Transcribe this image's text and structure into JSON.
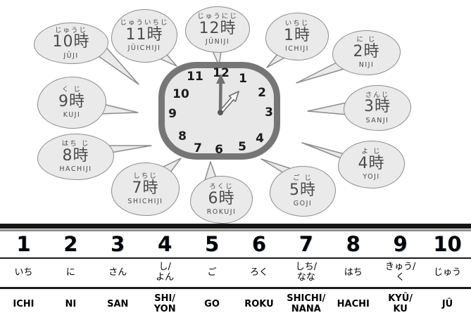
{
  "scene": {
    "clock": {
      "numbers": [
        "12",
        "1",
        "2",
        "3",
        "4",
        "5",
        "6",
        "7",
        "8",
        "9",
        "10",
        "11"
      ],
      "minute_hand_at": "12",
      "hour_hand_at": "1"
    },
    "bubbles": [
      {
        "hour": "1",
        "furigana": "いちじ",
        "time": "1時",
        "romaji": "ICHIJI"
      },
      {
        "hour": "2",
        "furigana": "に じ",
        "time": "2時",
        "romaji": "NIJI"
      },
      {
        "hour": "3",
        "furigana": "さんじ",
        "time": "3時",
        "romaji": "SANJI"
      },
      {
        "hour": "4",
        "furigana": "よ じ",
        "time": "4時",
        "romaji": "YOJI"
      },
      {
        "hour": "5",
        "furigana": "ご じ",
        "time": "5時",
        "romaji": "GOJI"
      },
      {
        "hour": "6",
        "furigana": "ろくじ",
        "time": "6時",
        "romaji": "ROKUJI"
      },
      {
        "hour": "7",
        "furigana": "しちじ",
        "time": "7時",
        "romaji": "SHICHIJI"
      },
      {
        "hour": "8",
        "furigana": "はち じ",
        "time": "8時",
        "romaji": "HACHIJI"
      },
      {
        "hour": "9",
        "furigana": "く じ",
        "time": "9時",
        "romaji": "KUJI"
      },
      {
        "hour": "10",
        "furigana": "じゅうじ",
        "time": "10時",
        "romaji": "JÛJI"
      },
      {
        "hour": "11",
        "furigana": "じゅういちじ",
        "time": "11時",
        "romaji": "JÛICHIJI"
      },
      {
        "hour": "12",
        "furigana": "じゅうにじ",
        "time": "12時",
        "romaji": "JÛNIJI"
      }
    ]
  },
  "table": {
    "columns": [
      {
        "digit": "1",
        "kana": "いち",
        "romaji": "ICHI"
      },
      {
        "digit": "2",
        "kana": "に",
        "romaji": "NI"
      },
      {
        "digit": "3",
        "kana": "さん",
        "romaji": "SAN"
      },
      {
        "digit": "4",
        "kana": "し/\nよん",
        "romaji": "SHI/\nYON"
      },
      {
        "digit": "5",
        "kana": "ご",
        "romaji": "GO"
      },
      {
        "digit": "6",
        "kana": "ろく",
        "romaji": "ROKU"
      },
      {
        "digit": "7",
        "kana": "しち/\nなな",
        "romaji": "SHICHI/\nNANA"
      },
      {
        "digit": "8",
        "kana": "はち",
        "romaji": "HACHI"
      },
      {
        "digit": "9",
        "kana": "きゅう/\nく",
        "romaji": "KYÛ/\nKU"
      },
      {
        "digit": "10",
        "kana": "じゅう",
        "romaji": "JÛ"
      }
    ]
  },
  "colors": {
    "bubble_fill": "#eaeaea",
    "bubble_stroke": "#8d8d8d",
    "clock_rim": "#767676",
    "clock_face": "#e8e8e8",
    "divider_black": "#151515",
    "divider_gray": "#909090"
  }
}
